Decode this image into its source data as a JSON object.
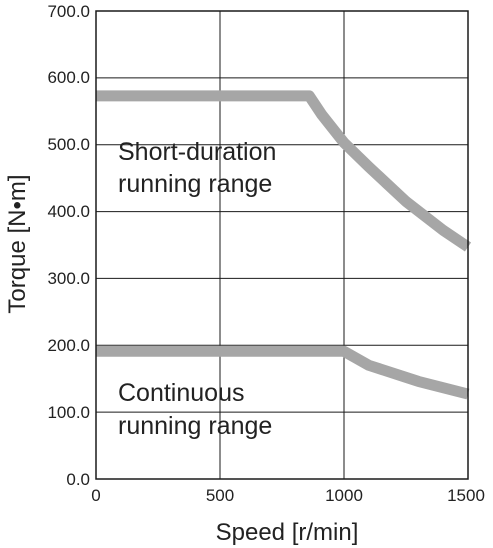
{
  "chart_data": {
    "type": "line",
    "xlabel": "Speed [r/min]",
    "ylabel": "Torque [N•m]",
    "xlim": [
      0,
      1500
    ],
    "ylim": [
      0,
      700
    ],
    "x_ticks": [
      "0",
      "500",
      "1000",
      "1500"
    ],
    "y_ticks": [
      "0.0",
      "100.0",
      "200.0",
      "300.0",
      "400.0",
      "500.0",
      "600.0",
      "700.0"
    ],
    "grid": true,
    "line_color": "#a6a6a6",
    "series": [
      {
        "x": [
          0,
          860,
          910,
          1000,
          1100,
          1250,
          1400,
          1500
        ],
        "y": [
          573,
          573,
          545,
          503,
          467,
          415,
          372,
          347
        ]
      },
      {
        "x": [
          0,
          1000,
          1100,
          1300,
          1500
        ],
        "y": [
          191,
          191,
          170,
          146,
          127
        ]
      }
    ],
    "annotations": [
      {
        "lines": [
          "Short-duration",
          "running range"
        ]
      },
      {
        "lines": [
          "Continuous",
          "running range"
        ]
      }
    ]
  }
}
